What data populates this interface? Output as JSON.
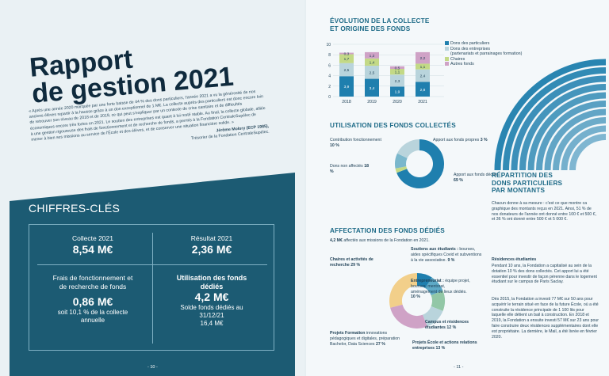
{
  "left": {
    "title_line1": "Rapport",
    "title_line2": "de gestion 2021",
    "intro": "« Après une année 2020 marquée par une forte baisse de 44 % des dons particuliers, l'année 2021 a vu la générosité de nos anciens élèves repartir à la hausse grâce à un don exceptionnel de 1 M€. La collecte auprès des particuliers est donc encore loin de retrouver son niveau de 2018 et de 2019, ce qui peut s'expliquer par un contexte de crise sanitaire et de difficultés économiques encore très fortes en 2021. Le soutien des entreprises est quant à lui resté stable. Au final, la collecte globale, alliée à une gestion rigoureuse des frais de fonctionnement et de recherche de fonds, a permis à la Fondation CentraleSupélec de mener à bien ses missions au service de l'École et des élèves, et de conserver une situation financière solide. »",
    "signature": "Jérôme Molory (ECP 1985),",
    "signature_role": "Trésorier de la Fondation CentraleSupélec.",
    "chiffres_title": "CHIFFRES-CLÉS",
    "kpi": {
      "collecte_label": "Collecte 2021",
      "collecte_value": "8,54 M€",
      "resultat_label": "Résultat 2021",
      "resultat_value": "2,36 M€",
      "frais_label": "Frais de fonctionnement et de recherche de fonds",
      "frais_value": "0,86 M€",
      "frais_sub": "soit 10,1 % de la collecte annuelle",
      "utilisation_label": "Utilisation des fonds dédiés",
      "utilisation_value": "4,2 M€",
      "utilisation_sub": "Solde fonds dédiés au 31/12/21",
      "utilisation_sub2": "16,4 M€"
    },
    "page_number": "- 10 -"
  },
  "right": {
    "page_number": "- 11 -",
    "evolution_title_1": "ÉVOLUTION DE LA COLLECTE",
    "evolution_title_2": "ET ORIGINE DES FONDS",
    "legend": {
      "dons_particuliers": "Dons des particuliers",
      "dons_entreprises": "Dons des entreprises",
      "dons_entreprises_sub": "(partenariats et parrainages formation)",
      "chaires": "Chaires",
      "autres": "Autres fonds"
    },
    "utilisation_title": "UTILISATION DES FONDS COLLECTÉS",
    "utilisation_labels": {
      "contrib": "Contribution fonctionnement",
      "contrib_pct": "10 %",
      "propres": "Apport aux fonds propres",
      "propres_pct": "3 %",
      "non_aff": "Dons non affectés",
      "non_aff_pct": "18 %",
      "dedies": "Apport aux fonds dédiés",
      "dedies_pct": "69 %"
    },
    "affectation_title": "AFFECTATION DES FONDS DÉDIÉS",
    "affectation_intro_bold": "4,2 M€",
    "affectation_intro": "affectés aux missions de la Fondation en 2021.",
    "affectation_labels": {
      "chaires": "Chaires et activités de recherche",
      "chaires_pct": "29 %",
      "soutiens": "Soutiens aux étudiants :",
      "soutiens_desc": "bourses, aides spécifiques Covid et subventions à la vie associative.",
      "soutiens_pct": "9 %",
      "entrepreneuriat": "Entrepreneuriat :",
      "entrepreneuriat_desc": "équipe projet, bourses, mentorat, aménagement de lieux dédiés.",
      "entrepreneuriat_pct": "10 %",
      "campus": "Campus et résidences étudiantes",
      "campus_pct": "12 %",
      "projets_ecole": "Projets École et actions relations entreprises",
      "projets_ecole_pct": "13 %",
      "formation": "Projets Formation",
      "formation_desc": "innovations pédagogiques et digitales, préparation Bachelor, Data Sciences",
      "formation_pct": "27 %"
    },
    "repartition_title_1": "RÉPARTITION DES",
    "repartition_title_2": "DONS PARTICULIERS",
    "repartition_title_3": "PAR MONTANTS",
    "repartition_text": "Chacun donne à sa mesure : c'est ce que montre ca graphique des montants reçus en 2021. Ainsi, 51 % de nos donateurs de l'année ont donné entre 100 € et 500 €, et 36 % ont donné entre 500 € et 5 000 €.",
    "residences_title": "Résidences étudiantes",
    "residences_p1": "Pendant 10 ans, la Fondation a capitalisé au sein de la dotation 10 % des dons collectés. Cet apport lui a été essentiel pour investir de façon pérenne dans le logement étudiant sur le campus de Paris Saclay.",
    "residences_p2": "Dès 2015, la Fondation a investi 77 M€ sur 50 ans pour acquérir le terrain situé en face de la future École, où a été construite la résidence principale de 1 100 lits pour laquelle elle détient un bail à construction. En 2018 et 2019, la Fondation a ensuite investi 57 M€ sur 23 ans pour faire construire deux résidences supplémentaires dont elle est propriétaire. La dernière, le Mail, a été livrée en février 2020."
  },
  "colors": {
    "particuliers": "#1f7fae",
    "entreprises": "#b9d4dc",
    "chaires": "#c3d986",
    "autres": "#cfa2c6",
    "navy": "#1c5b73"
  },
  "chart_data": [
    {
      "type": "bar",
      "stacked": true,
      "categories": [
        "2018",
        "2019",
        "2020",
        "2021"
      ],
      "series": [
        {
          "name": "Dons des particuliers",
          "values": [
            3.9,
            3.4,
            1.9,
            2.8
          ]
        },
        {
          "name": "Dons des entreprises",
          "values": [
            2.5,
            2.5,
            2.3,
            2.4
          ]
        },
        {
          "name": "Chaires",
          "values": [
            1.7,
            1.4,
            1.1,
            1.1
          ]
        },
        {
          "name": "Autres fonds",
          "values": [
            0.3,
            1.2,
            0.5,
            2.2
          ]
        }
      ],
      "yticks": [
        0,
        2,
        4,
        6,
        8,
        10
      ],
      "ylim": [
        0,
        10
      ],
      "grid": true,
      "legend": "right"
    },
    {
      "type": "pie",
      "donut": true,
      "labels": [
        "Apport aux fonds dédiés",
        "Apport aux fonds propres",
        "Contribution fonctionnement",
        "Dons non affectés"
      ],
      "values": [
        69,
        3,
        10,
        18
      ],
      "colors": [
        "#1f7fae",
        "#c3d986",
        "#7ab7cc",
        "#b9d4dc"
      ]
    },
    {
      "type": "pie",
      "donut": true,
      "labels": [
        "Soutiens aux étudiants",
        "Entrepreneuriat",
        "Campus et résidences étudiantes",
        "Projets École et actions relations entreprises",
        "Projets Formation",
        "Chaires et activités de recherche"
      ],
      "values": [
        9,
        10,
        12,
        13,
        27,
        29
      ],
      "colors": [
        "#1f7fae",
        "#5ea9c6",
        "#92c7a6",
        "#b9d4dc",
        "#cfa2c6",
        "#f2cf8a"
      ]
    }
  ]
}
